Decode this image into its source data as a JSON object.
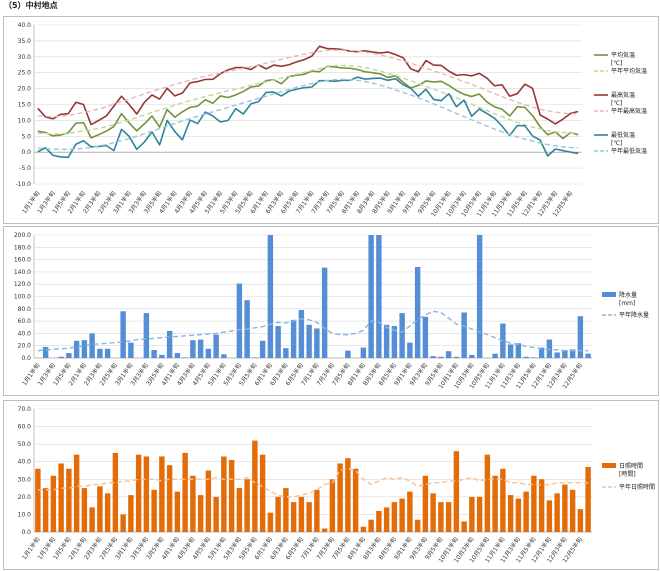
{
  "title": "（5）中村地点",
  "dekads": [
    "1月1半旬",
    "1月2半旬",
    "1月3半旬",
    "1月4半旬",
    "1月5半旬",
    "1月6半旬",
    "2月1半旬",
    "2月2半旬",
    "2月3半旬",
    "2月4半旬",
    "2月5半旬",
    "2月6半旬",
    "3月1半旬",
    "3月2半旬",
    "3月3半旬",
    "3月4半旬",
    "3月5半旬",
    "3月6半旬",
    "4月1半旬",
    "4月2半旬",
    "4月3半旬",
    "4月4半旬",
    "4月5半旬",
    "4月6半旬",
    "5月1半旬",
    "5月2半旬",
    "5月3半旬",
    "5月4半旬",
    "5月5半旬",
    "5月6半旬",
    "6月1半旬",
    "6月2半旬",
    "6月3半旬",
    "6月4半旬",
    "6月5半旬",
    "6月6半旬",
    "7月1半旬",
    "7月2半旬",
    "7月3半旬",
    "7月4半旬",
    "7月5半旬",
    "7月6半旬",
    "8月1半旬",
    "8月2半旬",
    "8月3半旬",
    "8月4半旬",
    "8月5半旬",
    "8月6半旬",
    "9月1半旬",
    "9月2半旬",
    "9月3半旬",
    "9月4半旬",
    "9月5半旬",
    "9月6半旬",
    "10月1半旬",
    "10月2半旬",
    "10月3半旬",
    "10月4半旬",
    "10月5半旬",
    "10月6半旬",
    "11月1半旬",
    "11月2半旬",
    "11月3半旬",
    "11月4半旬",
    "11月5半旬",
    "11月6半旬",
    "12月1半旬",
    "12月2半旬",
    "12月3半旬",
    "12月4半旬",
    "12月5半旬",
    "12月6半旬"
  ],
  "chart_data": [
    {
      "type": "line",
      "ylim": [
        -10,
        40
      ],
      "yticks": [
        "40.0",
        "35.0",
        "30.0",
        "25.0",
        "20.0",
        "15.0",
        "10.0",
        "5.0",
        "0.0",
        "-5.0",
        "-10.0"
      ],
      "series": [
        {
          "name": "平均気温\n[℃]",
          "color": "#76923c",
          "dashed": false,
          "values": [
            6.6,
            6.2,
            5.1,
            5.4,
            6.1,
            9.1,
            9.3,
            4.5,
            5.5,
            6.6,
            8.1,
            12.1,
            9.2,
            6.7,
            8.9,
            11.4,
            7.9,
            13.4,
            11.0,
            12.7,
            14.1,
            14.5,
            16.5,
            15.4,
            17.7,
            17.2,
            18.0,
            19.1,
            20.5,
            20.8,
            22.5,
            22.8,
            21.5,
            23.8,
            24.2,
            24.5,
            25.5,
            25.3,
            27.0,
            26.8,
            26.5,
            26.4,
            26.0,
            25.3,
            25.0,
            24.6,
            23.5,
            24.0,
            22.0,
            20.2,
            21.0,
            22.4,
            22.1,
            22.3,
            21.0,
            19.4,
            18.2,
            17.5,
            18.3,
            15.8,
            14.3,
            13.5,
            11.4,
            14.3,
            14.1,
            11.5,
            8.0,
            5.5,
            6.4,
            4.3,
            6.2,
            5.5
          ]
        },
        {
          "name": "平年平均気温",
          "color": "#c3d69b",
          "dashed": true,
          "values": [
            6.0,
            5.9,
            5.7,
            5.8,
            6.0,
            6.3,
            6.7,
            7.0,
            7.5,
            8.0,
            8.7,
            9.4,
            10.1,
            10.9,
            11.7,
            12.5,
            13.2,
            14.0,
            14.8,
            15.5,
            16.2,
            16.9,
            17.5,
            18.1,
            18.7,
            19.3,
            19.8,
            20.4,
            21.0,
            21.6,
            22.1,
            22.7,
            23.3,
            23.9,
            24.5,
            25.1,
            25.7,
            26.3,
            26.8,
            27.2,
            27.3,
            27.2,
            27.0,
            26.6,
            26.1,
            25.5,
            24.8,
            24.1,
            23.3,
            22.5,
            21.6,
            20.7,
            19.8,
            18.9,
            18.0,
            17.1,
            16.1,
            15.1,
            14.1,
            13.1,
            12.1,
            11.2,
            10.3,
            9.4,
            8.6,
            7.9,
            7.3,
            6.8,
            6.4,
            6.2,
            6.1,
            6.0
          ]
        },
        {
          "name": "最高気温\n[℃]",
          "color": "#953735",
          "dashed": false,
          "values": [
            13.8,
            11.1,
            10.5,
            11.9,
            12.1,
            15.7,
            15.0,
            8.7,
            10.0,
            11.4,
            14.5,
            17.6,
            15.0,
            12.0,
            15.7,
            18.0,
            16.7,
            20.1,
            17.7,
            18.6,
            21.8,
            22.2,
            22.9,
            22.9,
            24.7,
            25.9,
            26.6,
            26.6,
            26.0,
            27.5,
            26.2,
            27.4,
            27.0,
            27.5,
            28.4,
            29.1,
            30.2,
            33.3,
            32.6,
            32.5,
            32.3,
            31.8,
            31.6,
            31.9,
            31.5,
            31.2,
            31.5,
            30.7,
            29.7,
            26.2,
            25.3,
            28.8,
            27.4,
            27.3,
            25.5,
            24.2,
            24.4,
            24.0,
            24.8,
            23.3,
            20.9,
            21.2,
            17.6,
            18.4,
            21.4,
            20.1,
            11.7,
            10.4,
            8.9,
            10.4,
            12.2,
            12.8
          ]
        },
        {
          "name": "平年最高気温",
          "color": "#e6b9b8",
          "dashed": true,
          "values": [
            11.5,
            11.3,
            11.2,
            11.3,
            11.6,
            12.0,
            12.5,
            13.0,
            13.6,
            14.3,
            15.1,
            15.9,
            16.7,
            17.5,
            18.3,
            19.1,
            19.8,
            20.6,
            21.3,
            22.0,
            22.7,
            23.3,
            23.9,
            24.4,
            24.9,
            25.4,
            25.9,
            26.4,
            26.9,
            27.4,
            28.0,
            28.6,
            29.2,
            29.8,
            30.3,
            30.8,
            31.3,
            31.7,
            32.0,
            32.1,
            32.1,
            32.0,
            31.8,
            31.5,
            31.1,
            30.6,
            30.0,
            29.4,
            28.7,
            28.0,
            27.2,
            26.4,
            25.6,
            24.8,
            24.0,
            23.1,
            22.2,
            21.3,
            20.4,
            19.4,
            18.4,
            17.5,
            16.6,
            15.7,
            14.9,
            14.2,
            13.5,
            13.0,
            12.6,
            12.3,
            12.1,
            12.0
          ]
        },
        {
          "name": "最低気温\n[℃]",
          "color": "#31849b",
          "dashed": false,
          "values": [
            0.1,
            1.4,
            -1.0,
            -1.5,
            -1.6,
            2.5,
            3.6,
            1.7,
            1.8,
            2.1,
            0.5,
            7.2,
            5.0,
            0.9,
            3.2,
            6.4,
            2.3,
            10.0,
            6.5,
            3.9,
            10.1,
            9.0,
            12.6,
            11.4,
            9.5,
            10.0,
            13.7,
            12.0,
            15.2,
            15.9,
            18.8,
            18.9,
            17.7,
            19.2,
            19.8,
            20.3,
            20.5,
            22.5,
            22.5,
            22.3,
            22.6,
            22.6,
            23.6,
            23.0,
            23.2,
            23.3,
            22.6,
            23.1,
            21.2,
            20.1,
            17.6,
            19.8,
            16.6,
            16.2,
            18.4,
            14.3,
            16.4,
            11.3,
            13.6,
            12.2,
            10.7,
            8.2,
            5.2,
            8.4,
            8.3,
            5.1,
            3.8,
            -1.2,
            1.0,
            0.5,
            0.0,
            -0.4
          ]
        },
        {
          "name": "平年最低気温",
          "color": "#9bc6da",
          "dashed": true,
          "values": [
            1.3,
            1.1,
            1.0,
            0.9,
            0.9,
            1.0,
            1.2,
            1.5,
            1.9,
            2.4,
            3.0,
            3.6,
            4.3,
            5.0,
            5.8,
            6.6,
            7.4,
            8.2,
            9.0,
            9.8,
            10.6,
            11.3,
            12.0,
            12.7,
            13.4,
            14.1,
            14.8,
            15.5,
            16.2,
            16.9,
            17.6,
            18.3,
            19.0,
            19.7,
            20.4,
            21.0,
            21.6,
            22.1,
            22.5,
            22.8,
            22.9,
            22.8,
            22.6,
            22.2,
            21.7,
            21.1,
            20.4,
            19.6,
            18.8,
            18.0,
            17.1,
            16.2,
            15.2,
            14.2,
            13.2,
            12.2,
            11.2,
            10.2,
            9.2,
            8.2,
            7.3,
            6.4,
            5.6,
            4.8,
            4.1,
            3.5,
            2.9,
            2.4,
            2.0,
            1.7,
            1.5,
            1.4
          ]
        }
      ]
    },
    {
      "type": "bar",
      "ylim": [
        0,
        200
      ],
      "yticks": [
        "200.0",
        "180.0",
        "160.0",
        "140.0",
        "120.0",
        "100.0",
        "80.0",
        "60.0",
        "40.0",
        "20.0",
        "0.0"
      ],
      "series": [
        {
          "name": "降水量\n[mm]",
          "color": "#558ed5",
          "values": [
            0,
            18,
            0,
            2,
            8,
            28,
            29,
            40,
            15,
            15,
            0,
            76,
            25,
            0,
            73,
            13,
            5,
            44,
            8,
            1,
            29,
            30,
            15,
            38,
            6,
            0,
            121,
            94,
            1,
            28,
            200,
            52,
            16,
            62,
            78,
            54,
            48,
            147,
            0,
            0,
            12,
            0,
            17,
            200,
            200,
            54,
            52,
            73,
            25,
            148,
            67,
            3,
            2,
            11,
            2,
            74,
            5,
            200,
            0,
            7,
            56,
            22,
            24,
            2,
            1,
            17,
            30,
            9,
            13,
            14,
            68,
            7
          ]
        },
        {
          "name": "平年降水量",
          "color": "#8db3e2",
          "dashed": true,
          "values": [
            12,
            13,
            14,
            15,
            16,
            18,
            20,
            22,
            23,
            24,
            25,
            26,
            28,
            30,
            31,
            32,
            33,
            34,
            35,
            36,
            37,
            38,
            39,
            40,
            42,
            44,
            46,
            47,
            49,
            51,
            55,
            58,
            57,
            60,
            64,
            62,
            58,
            48,
            40,
            38,
            38,
            40,
            45,
            60,
            58,
            50,
            45,
            42,
            52,
            62,
            70,
            76,
            74,
            65,
            55,
            52,
            47,
            42,
            38,
            33,
            28,
            24,
            22,
            19,
            17,
            15,
            14,
            13,
            12,
            12,
            12,
            12
          ]
        }
      ]
    },
    {
      "type": "bar",
      "ylim": [
        0,
        70
      ],
      "yticks": [
        "70.0",
        "60.0",
        "50.0",
        "40.0",
        "30.0",
        "20.0",
        "10.0",
        "0.0"
      ],
      "series": [
        {
          "name": "日照時間\n[時間]",
          "color": "#e36c09",
          "values": [
            36,
            25,
            32,
            39,
            36,
            44,
            25,
            14,
            26,
            22,
            45,
            10,
            21,
            44,
            43,
            24,
            43,
            38,
            23,
            45,
            32,
            21,
            35,
            20,
            43,
            41,
            25,
            30,
            52,
            44,
            11,
            20,
            25,
            17,
            20,
            17,
            24,
            2,
            30,
            39,
            42,
            36,
            3,
            7,
            12,
            14,
            17,
            19,
            23,
            7,
            32,
            22,
            17,
            17,
            46,
            6,
            20,
            20,
            44,
            32,
            36,
            21,
            19,
            23,
            32,
            30,
            18,
            22,
            27,
            24,
            13,
            37
          ]
        },
        {
          "name": "平年日照時間",
          "color": "#fac090",
          "dashed": true,
          "values": [
            24,
            24,
            24,
            25,
            25,
            26,
            26,
            27,
            27,
            28,
            28,
            29,
            29,
            30,
            30,
            30,
            29,
            30,
            30,
            30,
            30,
            30,
            30,
            31,
            30,
            30,
            30,
            31,
            28,
            26,
            23,
            21,
            20,
            20,
            21,
            22,
            24,
            27,
            28,
            35,
            36,
            35,
            30,
            27,
            29,
            31,
            30,
            31,
            29,
            26,
            27,
            28,
            28,
            29,
            29,
            30,
            31,
            29,
            30,
            30,
            30,
            28,
            28,
            27,
            27,
            27,
            27,
            28,
            28,
            28,
            28,
            28
          ]
        }
      ]
    }
  ]
}
